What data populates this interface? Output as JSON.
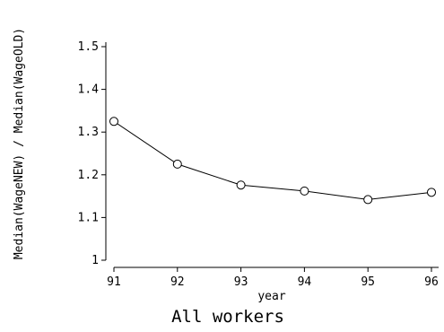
{
  "chart_data": {
    "type": "line",
    "x": [
      91,
      92,
      93,
      94,
      95,
      96
    ],
    "series": [
      {
        "values": [
          1.325,
          1.225,
          1.176,
          1.162,
          1.142,
          1.159
        ]
      }
    ],
    "xticks": [
      "91",
      "92",
      "93",
      "94",
      "95",
      "96"
    ],
    "yticks": [
      "1",
      "1.1",
      "1.2",
      "1.3",
      "1.4",
      "1.5"
    ],
    "xlabel": "year",
    "ylabel": "Median(WageNEW) / Median(WageOLD)",
    "caption": "All workers",
    "xlim": [
      91,
      96
    ],
    "ylim": [
      1,
      1.5
    ],
    "grid": false,
    "marker": "hollow-circle",
    "line_color": "#000000"
  }
}
